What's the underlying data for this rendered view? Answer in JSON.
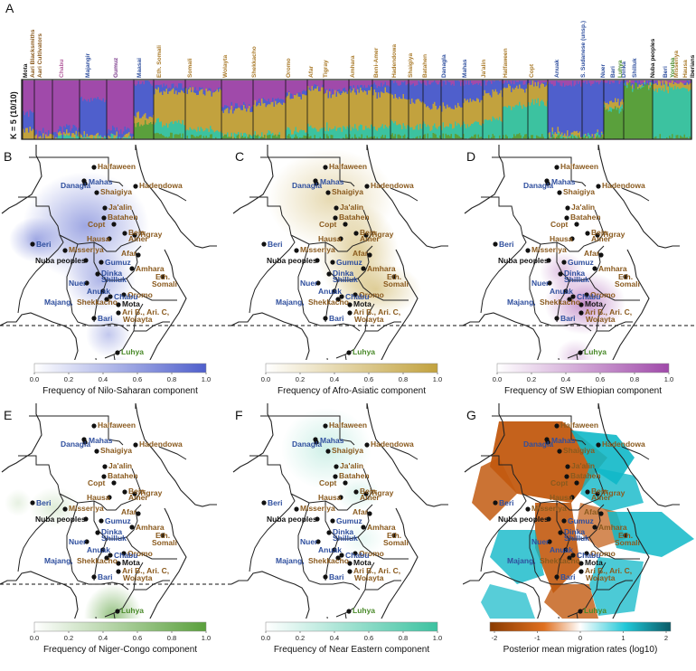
{
  "panel_a": {
    "letter": "A",
    "k_label": "K = 5 (10/10)",
    "populations": [
      {
        "name": "Mota",
        "color": "#111111"
      },
      {
        "name": "Aari Blacksmiths",
        "color": "#8a5a1e"
      },
      {
        "name": "Aari Cultivators",
        "color": "#8a5a1e"
      },
      {
        "name": "Chabu",
        "color": "#b25b9c"
      },
      {
        "name": "Majangir",
        "color": "#2f4f9e"
      },
      {
        "name": "Gumuz",
        "color": "#7c3c8c"
      },
      {
        "name": "Maasai",
        "color": "#2f4f9e"
      },
      {
        "name": "Eth. Somali",
        "color": "#a97a2a"
      },
      {
        "name": "Somali",
        "color": "#a97a2a"
      },
      {
        "name": "Wolayta",
        "color": "#a97a2a"
      },
      {
        "name": "Shekkacho",
        "color": "#a97a2a"
      },
      {
        "name": "Oromo",
        "color": "#a97a2a"
      },
      {
        "name": "Afar",
        "color": "#a97a2a"
      },
      {
        "name": "Tigray",
        "color": "#a97a2a"
      },
      {
        "name": "Amhara",
        "color": "#a97a2a"
      },
      {
        "name": "Beni-Amer",
        "color": "#a97a2a"
      },
      {
        "name": "Hadendowa",
        "color": "#a97a2a"
      },
      {
        "name": "Shaigiya",
        "color": "#a97a2a"
      },
      {
        "name": "Batahen",
        "color": "#a97a2a"
      },
      {
        "name": "Danagla",
        "color": "#2f4f9e"
      },
      {
        "name": "Mahas",
        "color": "#2f4f9e"
      },
      {
        "name": "Ja'alin",
        "color": "#a97a2a"
      },
      {
        "name": "Halfaween",
        "color": "#a97a2a"
      },
      {
        "name": "Copt",
        "color": "#a97a2a"
      },
      {
        "name": "Anuak",
        "color": "#2f4f9e"
      },
      {
        "name": "S. Sudanese (unsp.)",
        "color": "#2f4f9e"
      },
      {
        "name": "Nuer",
        "color": "#2f4f9e"
      },
      {
        "name": "Bari",
        "color": "#2f4f9e"
      },
      {
        "name": "Dinka",
        "color": "#2f4f9e"
      },
      {
        "name": "Shilluk",
        "color": "#2f4f9e"
      },
      {
        "name": "Nuba peoples",
        "color": "#111111"
      },
      {
        "name": "Beri",
        "color": "#2f4f9e"
      },
      {
        "name": "Misseriya",
        "color": "#a97a2a"
      },
      {
        "name": "Hausa",
        "color": "#a97a2a"
      },
      {
        "name": "Luhya",
        "color": "#4a8a2a"
      },
      {
        "name": "Yoruba",
        "color": "#4a8a2a"
      },
      {
        "name": "Iberians",
        "color": "#111111"
      }
    ]
  },
  "populations_map": [
    {
      "name": "Halfaween",
      "color": "#8a5a1e"
    },
    {
      "name": "Danagla",
      "color": "#2f4f9e"
    },
    {
      "name": "Mahas",
      "color": "#2f4f9e"
    },
    {
      "name": "Shaigiya",
      "color": "#8a5a1e"
    },
    {
      "name": "Hadendowa",
      "color": "#8a5a1e"
    },
    {
      "name": "Ja'alin",
      "color": "#8a5a1e"
    },
    {
      "name": "Batahen",
      "color": "#8a5a1e"
    },
    {
      "name": "Copt",
      "color": "#8a5a1e"
    },
    {
      "name": "Beja",
      "color": "#8a5a1e"
    },
    {
      "name": "Tigray",
      "color": "#8a5a1e"
    },
    {
      "name": "Amer",
      "color": "#8a5a1e"
    },
    {
      "name": "Hausa",
      "color": "#8a5a1e"
    },
    {
      "name": "Beri",
      "color": "#2f4f9e"
    },
    {
      "name": "Misseriya",
      "color": "#8a5a1e"
    },
    {
      "name": "Afar",
      "color": "#8a5a1e"
    },
    {
      "name": "Nuba peoples",
      "color": "#111111"
    },
    {
      "name": "Gumuz",
      "color": "#2f4f9e"
    },
    {
      "name": "Amhara",
      "color": "#8a5a1e"
    },
    {
      "name": "Dinka",
      "color": "#2f4f9e"
    },
    {
      "name": "Shilluk",
      "color": "#2f4f9e"
    },
    {
      "name": "Eth.",
      "color": "#8a5a1e"
    },
    {
      "name": "Somali",
      "color": "#8a5a1e"
    },
    {
      "name": "Nuer",
      "color": "#2f4f9e"
    },
    {
      "name": "Anuak",
      "color": "#2f4f9e"
    },
    {
      "name": "Oromo",
      "color": "#8a5a1e"
    },
    {
      "name": "Chabu",
      "color": "#2f4f9e"
    },
    {
      "name": "Majang,",
      "color": "#2f4f9e"
    },
    {
      "name": "Shekkacho",
      "color": "#8a5a1e"
    },
    {
      "name": "Mota",
      "color": "#111111"
    },
    {
      "name": "Ari B., Ari. C,",
      "color": "#8a5a1e"
    },
    {
      "name": "Wolayta",
      "color": "#8a5a1e"
    },
    {
      "name": "Bari",
      "color": "#2f4f9e"
    },
    {
      "name": "Luhya",
      "color": "#4a8a2a"
    },
    {
      "name": "Maasai",
      "color": "#2f4f9e"
    }
  ],
  "panels": [
    {
      "letter": "B",
      "caption": "Frequency of Nilo-Saharan component",
      "color": "#4a55c8"
    },
    {
      "letter": "C",
      "caption": "Frequency of Afro-Asiatic component",
      "color": "#b89a38"
    },
    {
      "letter": "D",
      "caption": "Frequency of SW Ethiopian component",
      "color": "#9a4aa8"
    },
    {
      "letter": "E",
      "caption": "Frequency of Niger-Congo component",
      "color": "#5a9a3c"
    },
    {
      "letter": "F",
      "caption": "Frequency of Near Eastern component",
      "color": "#3ab79a"
    }
  ],
  "colorbar_ticks": [
    "0.0",
    "0.2",
    "0.4",
    "0.6",
    "0.8",
    "1.0"
  ],
  "panel_g": {
    "letter": "G",
    "caption": "Posterior mean migration rates (log10)",
    "ticks": [
      "-2",
      "-1",
      "0",
      "1",
      "2"
    ]
  },
  "colors": {
    "nilo_saharan": "#4f5fcc",
    "afro_asiatic": "#c2a23e",
    "sw_ethiopian": "#a04aaa",
    "niger_congo": "#5aa03c",
    "near_eastern": "#3cc2a0",
    "migration_low": "#c25a10",
    "migration_high": "#10b8c8"
  }
}
